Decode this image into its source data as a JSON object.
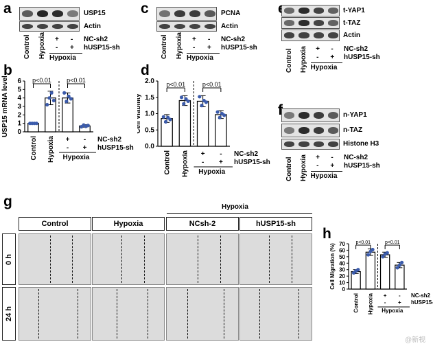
{
  "panels": {
    "a": "a",
    "b": "b",
    "c": "c",
    "d": "d",
    "e": "e",
    "f": "f",
    "g": "g",
    "h": "h"
  },
  "blot_labels": {
    "a": [
      "USP15",
      "Actin"
    ],
    "c": [
      "PCNA",
      "Actin"
    ],
    "e": [
      "t-YAP1",
      "t-TAZ",
      "Actin"
    ],
    "f": [
      "n-YAP1",
      "n-TAZ",
      "Histone H3"
    ]
  },
  "conditions": {
    "control": "Control",
    "hypoxia": "Hypoxia",
    "plus": "+",
    "minus": "-",
    "nc": "NC-sh2",
    "hus": "hUSP15-sh",
    "group": "Hypoxia"
  },
  "charts": {
    "b": {
      "ylabel": "USP15 mRNA level",
      "yticks": [
        "0",
        "1",
        "2",
        "3",
        "4",
        "5",
        "6"
      ],
      "ylim": [
        0,
        6
      ],
      "pvalues": [
        "p<0.01",
        "p<0.01"
      ]
    },
    "d": {
      "ylabel": "Cell viability",
      "yticks": [
        "0.0",
        "0.5",
        "1.0",
        "1.5",
        "2.0"
      ],
      "ylim": [
        0,
        2
      ],
      "pvalues": [
        "p<0.01",
        "p<0.01"
      ]
    },
    "h": {
      "ylabel": "Cell Migration (%)",
      "yticks": [
        "0",
        "10",
        "20",
        "30",
        "40",
        "50",
        "60",
        "70"
      ],
      "ylim": [
        0,
        70
      ],
      "pvalues": [
        "p<0.01",
        "p<0.01"
      ]
    }
  },
  "chart_data": [
    {
      "type": "bar",
      "panel": "b",
      "categories": [
        "Control",
        "Hypoxia",
        "Hypoxia + NC-sh2",
        "Hypoxia + hUSP15-sh"
      ],
      "values": [
        1.0,
        4.0,
        4.0,
        0.7
      ],
      "errors": [
        0.05,
        0.8,
        0.6,
        0.15
      ],
      "points": [
        [
          1,
          1,
          1,
          1
        ],
        [
          3.2,
          4,
          4.6,
          3.7
        ],
        [
          4.6,
          3.6,
          4.2,
          3.9
        ],
        [
          0.6,
          0.8,
          0.65,
          0.75
        ]
      ],
      "ylabel": "USP15 mRNA level",
      "ylim": [
        0,
        6
      ]
    },
    {
      "type": "bar",
      "panel": "d",
      "categories": [
        "Control",
        "Hypoxia",
        "Hypoxia + NC-sh2",
        "Hypoxia + hUSP15-sh"
      ],
      "values": [
        0.85,
        1.4,
        1.38,
        0.97
      ],
      "errors": [
        0.12,
        0.15,
        0.17,
        0.12
      ],
      "points": [
        [
          0.9,
          0.75,
          0.88,
          0.82
        ],
        [
          1.5,
          1.3,
          1.45,
          1.38
        ],
        [
          1.52,
          1.25,
          1.4,
          1.35
        ],
        [
          1.05,
          0.88,
          1.0,
          0.95
        ]
      ],
      "ylabel": "Cell viability",
      "ylim": [
        0,
        2
      ]
    },
    {
      "type": "bar",
      "panel": "h",
      "categories": [
        "Control",
        "Hypoxia",
        "Hypoxia + NC-sh2",
        "Hypoxia + hUSP15-sh"
      ],
      "values": [
        27,
        57,
        53,
        37
      ],
      "errors": [
        3,
        5,
        4,
        4
      ],
      "points": [
        [
          25,
          28,
          30
        ],
        [
          53,
          58,
          61
        ],
        [
          50,
          54,
          56
        ],
        [
          33,
          37,
          41
        ]
      ],
      "ylabel": "Cell Migration (%)",
      "ylim": [
        0,
        70
      ]
    }
  ],
  "scratch": {
    "groups": [
      "Control",
      "Hypoxia",
      "NCsh-2",
      "hUSP15-sh"
    ],
    "hypoxia_header": "Hypoxia",
    "times": [
      "0 h",
      "24 h"
    ]
  },
  "watermark": "@新视"
}
